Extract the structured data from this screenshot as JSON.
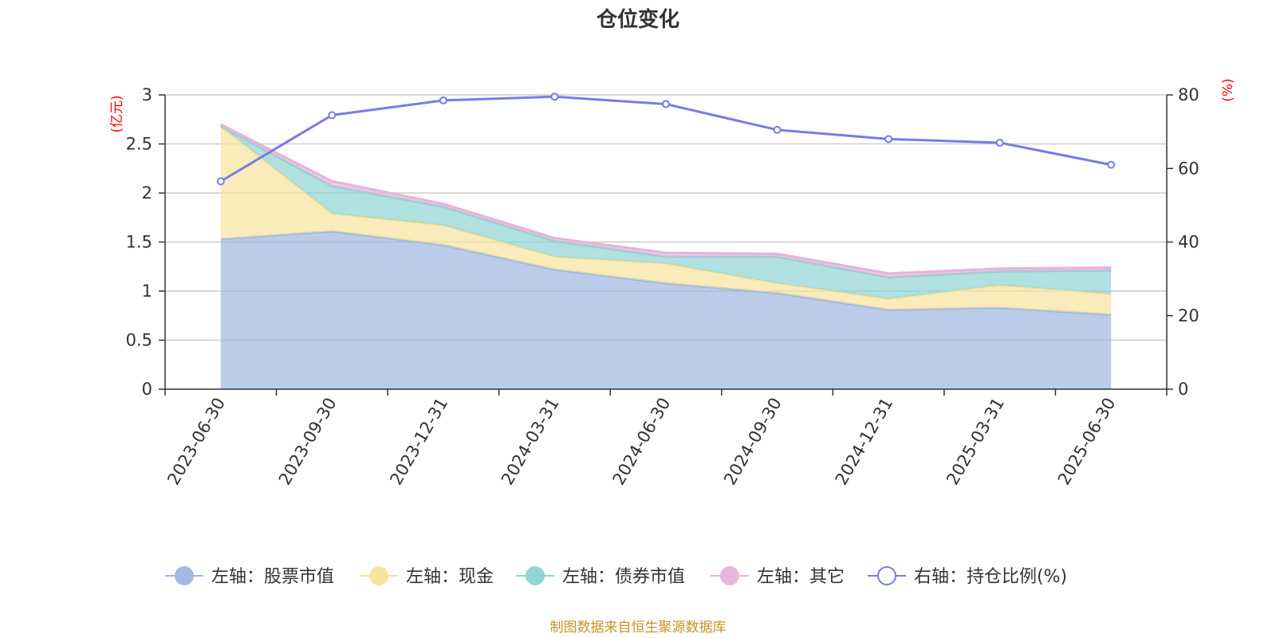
{
  "chart_data": {
    "type": "area",
    "title": "仓位变化",
    "source_note": "制图数据来自恒生聚源数据库",
    "categories": [
      "2023-06-30",
      "2023-09-30",
      "2023-12-31",
      "2024-03-31",
      "2024-06-30",
      "2024-09-30",
      "2024-12-31",
      "2025-03-31",
      "2025-06-30"
    ],
    "left_axis": {
      "unit": "(亿元)",
      "ylim": [
        0,
        3
      ],
      "ticks": [
        "0",
        "0.5",
        "1",
        "1.5",
        "2",
        "2.5",
        "3"
      ]
    },
    "right_axis": {
      "unit": "(%)",
      "ylim": [
        0,
        80
      ],
      "ticks": [
        "0",
        "20",
        "40",
        "60",
        "80"
      ]
    },
    "stacked_series": [
      {
        "name": "左轴：股票市值",
        "color": "#9db7e0",
        "values": [
          1.53,
          1.61,
          1.47,
          1.22,
          1.08,
          0.98,
          0.81,
          0.83,
          0.76
        ]
      },
      {
        "name": "左轴：现金",
        "color": "#f7e39c",
        "values": [
          1.15,
          0.18,
          0.2,
          0.13,
          0.2,
          0.1,
          0.11,
          0.23,
          0.21
        ]
      },
      {
        "name": "左轴：债券市值",
        "color": "#8fd3d1",
        "values": [
          0.0,
          0.28,
          0.19,
          0.16,
          0.07,
          0.27,
          0.22,
          0.14,
          0.24
        ]
      },
      {
        "name": "左轴：其它",
        "color": "#e6b3da",
        "values": [
          0.02,
          0.05,
          0.03,
          0.03,
          0.04,
          0.03,
          0.04,
          0.03,
          0.03
        ]
      }
    ],
    "line_series": {
      "name": "右轴：持仓比例(%)",
      "color": "#7a7ae6",
      "values": [
        56.5,
        74.5,
        78.5,
        79.5,
        77.5,
        70.5,
        68.0,
        67.0,
        61.0
      ]
    },
    "grid": true,
    "legend_position": "bottom"
  }
}
